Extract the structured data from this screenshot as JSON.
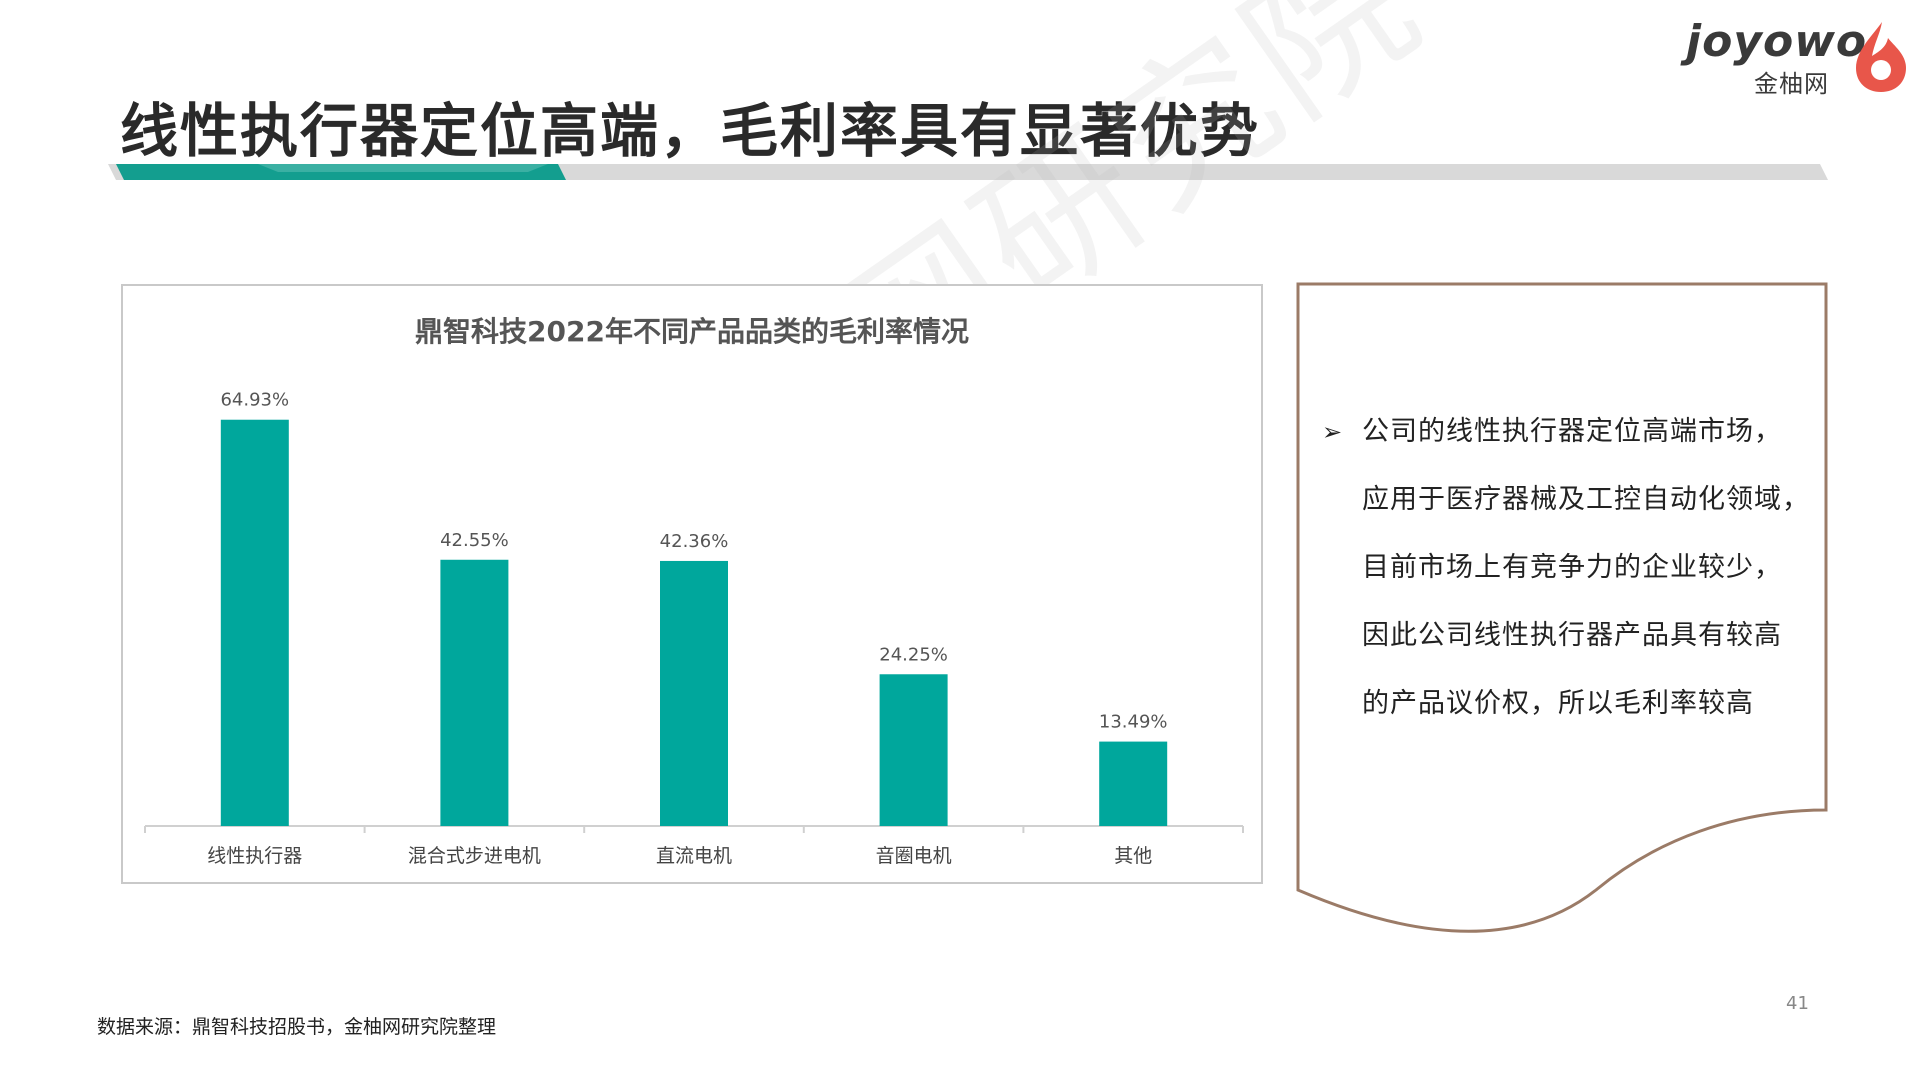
{
  "page": {
    "title": "线性执行器定位高端，毛利率具有显著优势",
    "page_number": "41",
    "source": "数据来源：鼎智科技招股书，金柚网研究院整理",
    "watermark": "金柚网研究院"
  },
  "logo": {
    "wordmark": "joyowo",
    "chinese": "金柚网",
    "colors": {
      "text": "#3a3a3a",
      "drop": "#e8564a"
    }
  },
  "colors": {
    "bar": "#00a79c",
    "title_bar_accent": "#139e8f",
    "title_bar_gray": "#d9d9d9",
    "note_border": "#9b7b67"
  },
  "note": {
    "bullet_icon": "arrow-bullet-icon",
    "bullet_symbol": "➢",
    "lines": [
      "公司的线性执行器定位高端市场，",
      "应用于医疗器械及工控自动化领域，",
      "目前市场上有竞争力的企业较少，",
      "因此公司线性执行器产品具有较高",
      "的产品议价权，所以毛利率较高"
    ]
  },
  "chart_data": {
    "type": "bar",
    "title": "鼎智科技2022年不同产品品类的毛利率情况",
    "categories": [
      "线性执行器",
      "混合式步进电机",
      "直流电机",
      "音圈电机",
      "其他"
    ],
    "values": [
      64.93,
      42.55,
      42.36,
      24.25,
      13.49
    ],
    "data_labels": [
      "64.93%",
      "42.55%",
      "42.36%",
      "24.25%",
      "13.49%"
    ],
    "xlabel": "",
    "ylabel": "",
    "ylim": [
      0,
      70
    ],
    "grid": false,
    "legend": "none",
    "bar_color": "#00a79c"
  }
}
